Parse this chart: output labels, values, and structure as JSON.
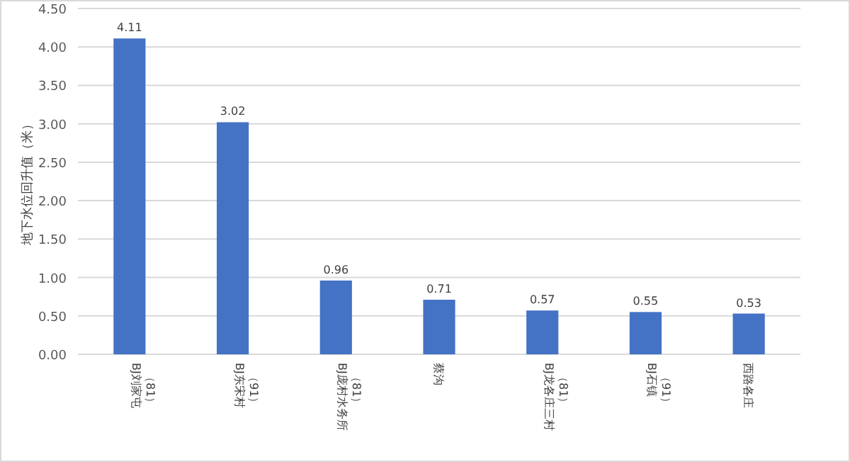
{
  "chart_data": {
    "type": "bar",
    "ylabel": "地下水位回升值（米）",
    "categories": [
      "BJ刘家屯（81）",
      "BJ东宋村（91）",
      "BJ庞村水务所（81）",
      "蔡沟",
      "BJ龙各庄三村（81）",
      "BJ石镇（91）",
      "西路各庄"
    ],
    "values": [
      4.11,
      3.02,
      0.96,
      0.71,
      0.57,
      0.55,
      0.53
    ],
    "color": "#4472c4",
    "ylim": [
      0,
      4.5
    ],
    "yticks": [
      {
        "value": 0,
        "label": "0.00"
      },
      {
        "value": 0.5,
        "label": "0.50"
      },
      {
        "value": 1,
        "label": "1.00"
      },
      {
        "value": 1.5,
        "label": "1.50"
      },
      {
        "value": 2,
        "label": "2.00"
      },
      {
        "value": 2.5,
        "label": "2.50"
      },
      {
        "value": 3,
        "label": "3.00"
      },
      {
        "value": 3.5,
        "label": "3.50"
      },
      {
        "value": 4,
        "label": "4.00"
      },
      {
        "value": 4.5,
        "label": "4.50"
      }
    ],
    "grid": "y",
    "data_labels": true
  }
}
